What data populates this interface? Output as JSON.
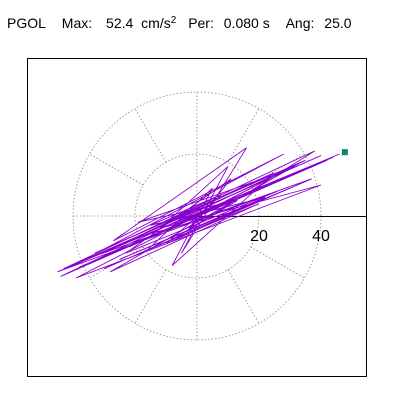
{
  "header": {
    "station": "PGOL",
    "max_label": "Max:",
    "max_value": "52.4",
    "max_unit_base": "cm/s",
    "max_unit_exp": "2",
    "per_label": "Per:",
    "per_value": "0.080 s",
    "ang_label": "Ang:",
    "ang_value": "25.0"
  },
  "chart_data": {
    "type": "scatter",
    "subtype": "particle-motion-polar",
    "title": "",
    "xlabel": "",
    "ylabel": "",
    "rings": [
      20,
      40
    ],
    "radial_tick_labels": [
      "20",
      "40"
    ],
    "spoke_step_deg": 30,
    "grid": true,
    "range": [
      -60,
      60
    ],
    "peak_marker": {
      "x": 47.7,
      "y": 20.6,
      "color": "#0a8a6a"
    },
    "trace_color": "#8800cc",
    "trace": [
      [
        0,
        0
      ],
      [
        3,
        1.5
      ],
      [
        -2,
        -1
      ],
      [
        6,
        3
      ],
      [
        -5,
        -2.5
      ],
      [
        9,
        4.5
      ],
      [
        -8,
        -3
      ],
      [
        12,
        5.5
      ],
      [
        -11,
        -5
      ],
      [
        15,
        6.5
      ],
      [
        -14,
        -6
      ],
      [
        19,
        8
      ],
      [
        -18,
        -8
      ],
      [
        23,
        10
      ],
      [
        -22,
        -10
      ],
      [
        27,
        12
      ],
      [
        -26,
        -11.5
      ],
      [
        31,
        13.5
      ],
      [
        -30,
        -13
      ],
      [
        34,
        15
      ],
      [
        -34,
        -15
      ],
      [
        38,
        16.5
      ],
      [
        -38,
        -16.5
      ],
      [
        42,
        18
      ],
      [
        -42,
        -18.5
      ],
      [
        44,
        19
      ],
      [
        -44,
        -19.5
      ],
      [
        35,
        18
      ],
      [
        -33,
        -12
      ],
      [
        25,
        14
      ],
      [
        -24,
        -9
      ],
      [
        18,
        11
      ],
      [
        -20,
        -7
      ],
      [
        14,
        2
      ],
      [
        -10,
        -9
      ],
      [
        8,
        7
      ],
      [
        -15,
        -3
      ],
      [
        22,
        6
      ],
      [
        -25,
        -14
      ],
      [
        30,
        9
      ],
      [
        -30,
        -17
      ],
      [
        37,
        12
      ],
      [
        -36,
        -14
      ],
      [
        40,
        19.5
      ],
      [
        -40,
        -16
      ],
      [
        28,
        20
      ],
      [
        -27,
        -8
      ],
      [
        16,
        22
      ],
      [
        -5,
        -12
      ],
      [
        10,
        16
      ],
      [
        -12,
        -4
      ],
      [
        40,
        10
      ],
      [
        -39,
        -20
      ],
      [
        33,
        17
      ],
      [
        -28,
        -18
      ],
      [
        20,
        4
      ],
      [
        -16,
        -11
      ],
      [
        5,
        9
      ],
      [
        -8,
        -16
      ],
      [
        24,
        13
      ],
      [
        -19,
        -2
      ],
      [
        13,
        5
      ],
      [
        -7,
        -7
      ],
      [
        38,
        21
      ],
      [
        -43,
        -17
      ],
      [
        46,
        20
      ],
      [
        -45,
        -18
      ],
      [
        26,
        8
      ],
      [
        -23,
        -12
      ],
      [
        11,
        12
      ],
      [
        -3,
        -5
      ],
      [
        2,
        3
      ]
    ]
  }
}
